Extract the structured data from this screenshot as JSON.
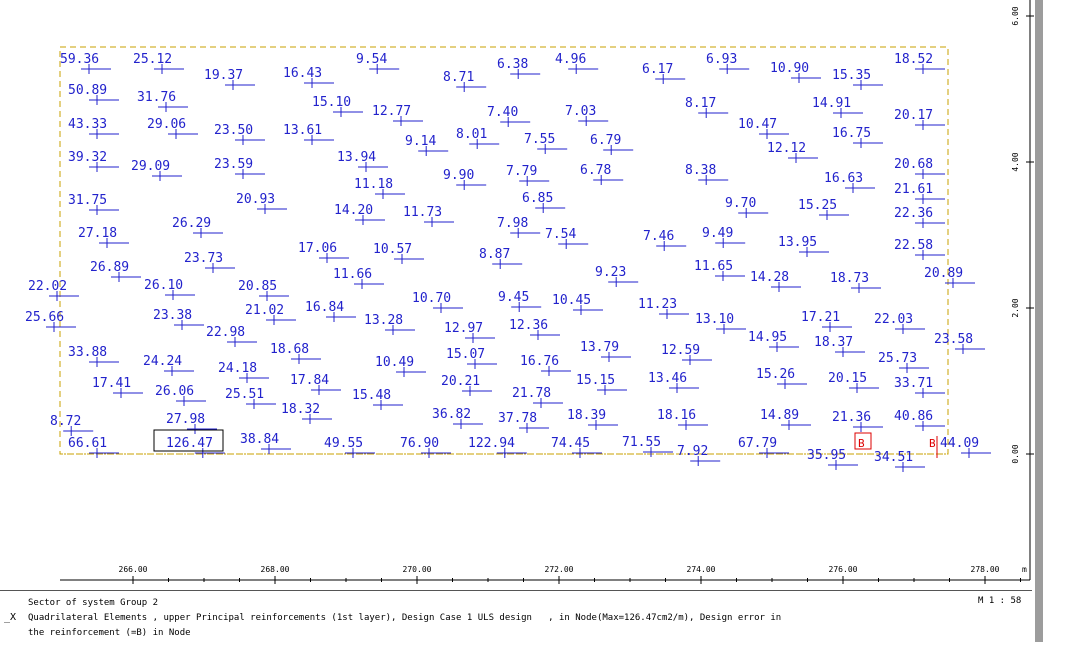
{
  "colors": {
    "frame": "#c9a200",
    "label": "#2222cc",
    "error": "#dd0000",
    "axis": "#000000"
  },
  "x_axis": {
    "ticks": [
      "266.00",
      "268.00",
      "270.00",
      "272.00",
      "274.00",
      "276.00",
      "278.00"
    ],
    "unit": "m"
  },
  "y_axis": {
    "ticks": [
      "0.00",
      "2.00",
      "4.00",
      "6.00"
    ]
  },
  "footer": {
    "line1": "Sector of system Group 2",
    "line2": "Quadrilateral Elements , upper Principal reinforcements (1st layer), Design Case 1 ULS design   , in Node(Max=126.47cm2/m), Design error in",
    "line3": "the reinforcement (=B) in Node",
    "scale": "M 1 : 58",
    "axis_marker": "_X"
  },
  "error_marks": [
    "B",
    "B"
  ],
  "chart_data": {
    "type": "scatter",
    "values": [
      [
        "59.36",
        60,
        59
      ],
      [
        "25.12",
        133,
        59
      ],
      [
        "19.37",
        204,
        75
      ],
      [
        "16.43",
        283,
        73
      ],
      [
        "9.54",
        356,
        59
      ],
      [
        "8.71",
        443,
        77
      ],
      [
        "6.38",
        497,
        64
      ],
      [
        "4.96",
        555,
        59
      ],
      [
        "6.17",
        642,
        69
      ],
      [
        "6.93",
        706,
        59
      ],
      [
        "10.90",
        770,
        68
      ],
      [
        "15.35",
        832,
        75
      ],
      [
        "18.52",
        894,
        59
      ],
      [
        "50.89",
        68,
        90
      ],
      [
        "31.76",
        137,
        97
      ],
      [
        "15.10",
        312,
        102
      ],
      [
        "12.77",
        372,
        111
      ],
      [
        "7.40",
        487,
        112
      ],
      [
        "7.03",
        565,
        111
      ],
      [
        "8.17",
        685,
        103
      ],
      [
        "10.47",
        738,
        124
      ],
      [
        "14.91",
        812,
        103
      ],
      [
        "20.17",
        894,
        115
      ],
      [
        "43.33",
        68,
        124
      ],
      [
        "29.06",
        147,
        124
      ],
      [
        "23.50",
        214,
        130
      ],
      [
        "13.61",
        283,
        130
      ],
      [
        "9.14",
        405,
        141
      ],
      [
        "8.01",
        456,
        134
      ],
      [
        "7.55",
        524,
        139
      ],
      [
        "6.79",
        590,
        140
      ],
      [
        "12.12",
        767,
        148
      ],
      [
        "16.75",
        832,
        133
      ],
      [
        "39.32",
        68,
        157
      ],
      [
        "29.09",
        131,
        166
      ],
      [
        "23.59",
        214,
        164
      ],
      [
        "13.94",
        337,
        157
      ],
      [
        "9.90",
        443,
        175
      ],
      [
        "7.79",
        506,
        171
      ],
      [
        "6.78",
        580,
        170
      ],
      [
        "8.38",
        685,
        170
      ],
      [
        "16.63",
        824,
        178
      ],
      [
        "20.68",
        894,
        164
      ],
      [
        "21.61",
        894,
        189
      ],
      [
        "31.75",
        68,
        200
      ],
      [
        "11.18",
        354,
        184
      ],
      [
        "14.20",
        334,
        210
      ],
      [
        "11.73",
        403,
        212
      ],
      [
        "6.85",
        522,
        198
      ],
      [
        "9.70",
        725,
        203
      ],
      [
        "15.25",
        798,
        205
      ],
      [
        "22.36",
        894,
        213
      ],
      [
        "27.18",
        78,
        233
      ],
      [
        "26.29",
        172,
        223
      ],
      [
        "20.93",
        236,
        199
      ],
      [
        "17.06",
        298,
        248
      ],
      [
        "10.57",
        373,
        249
      ],
      [
        "7.98",
        497,
        223
      ],
      [
        "7.54",
        545,
        234
      ],
      [
        "7.46",
        643,
        236
      ],
      [
        "9.49",
        702,
        233
      ],
      [
        "13.95",
        778,
        242
      ],
      [
        "22.58",
        894,
        245
      ],
      [
        "26.89",
        90,
        267
      ],
      [
        "26.10",
        144,
        285
      ],
      [
        "23.73",
        184,
        258
      ],
      [
        "11.66",
        333,
        274
      ],
      [
        "8.87",
        479,
        254
      ],
      [
        "9.23",
        595,
        272
      ],
      [
        "11.65",
        694,
        266
      ],
      [
        "14.28",
        750,
        277
      ],
      [
        "18.73",
        830,
        278
      ],
      [
        "20.89",
        924,
        273
      ],
      [
        "22.02",
        28,
        286
      ],
      [
        "20.85",
        238,
        286
      ],
      [
        "10.70",
        412,
        298
      ],
      [
        "9.45",
        498,
        297
      ],
      [
        "10.45",
        552,
        300
      ],
      [
        "11.23",
        638,
        304
      ],
      [
        "13.10",
        695,
        319
      ],
      [
        "17.21",
        801,
        317
      ],
      [
        "22.03",
        874,
        319
      ],
      [
        "25.66",
        25,
        317
      ],
      [
        "23.38",
        153,
        315
      ],
      [
        "21.02",
        245,
        310
      ],
      [
        "16.84",
        305,
        307
      ],
      [
        "13.28",
        364,
        320
      ],
      [
        "12.97",
        444,
        328
      ],
      [
        "12.36",
        509,
        325
      ],
      [
        "14.95",
        748,
        337
      ],
      [
        "18.37",
        814,
        342
      ],
      [
        "23.58",
        934,
        339
      ],
      [
        "22.98",
        206,
        332
      ],
      [
        "33.88",
        68,
        352
      ],
      [
        "18.68",
        270,
        349
      ],
      [
        "15.07",
        446,
        354
      ],
      [
        "13.79",
        580,
        347
      ],
      [
        "12.59",
        661,
        350
      ],
      [
        "25.73",
        878,
        358
      ],
      [
        "24.24",
        143,
        361
      ],
      [
        "24.18",
        218,
        368
      ],
      [
        "10.49",
        375,
        362
      ],
      [
        "16.76",
        520,
        361
      ],
      [
        "15.26",
        756,
        374
      ],
      [
        "20.15",
        828,
        378
      ],
      [
        "33.71",
        894,
        383
      ],
      [
        "17.41",
        92,
        383
      ],
      [
        "26.06",
        155,
        391
      ],
      [
        "25.51",
        225,
        394
      ],
      [
        "17.84",
        290,
        380
      ],
      [
        "20.21",
        441,
        381
      ],
      [
        "21.78",
        512,
        393
      ],
      [
        "15.15",
        576,
        380
      ],
      [
        "13.46",
        648,
        378
      ],
      [
        "8.72",
        50,
        421
      ],
      [
        "27.98",
        166,
        419
      ],
      [
        "18.32",
        281,
        409
      ],
      [
        "15.48",
        352,
        395
      ],
      [
        "36.82",
        432,
        414
      ],
      [
        "37.78",
        498,
        418
      ],
      [
        "18.39",
        567,
        415
      ],
      [
        "18.16",
        657,
        415
      ],
      [
        "14.89",
        760,
        415
      ],
      [
        "21.36",
        832,
        417
      ],
      [
        "40.86",
        894,
        416
      ],
      [
        "66.61",
        68,
        443
      ],
      [
        "126.47",
        166,
        443
      ],
      [
        "38.84",
        240,
        439
      ],
      [
        "49.55",
        324,
        443
      ],
      [
        "76.90",
        400,
        443
      ],
      [
        "122.94",
        468,
        443
      ],
      [
        "74.45",
        551,
        443
      ],
      [
        "71.55",
        622,
        442
      ],
      [
        "7.92",
        677,
        451
      ],
      [
        "67.79",
        738,
        443
      ],
      [
        "35.95",
        807,
        455
      ],
      [
        "34.51",
        874,
        457
      ],
      [
        "44.09",
        940,
        443
      ]
    ]
  }
}
